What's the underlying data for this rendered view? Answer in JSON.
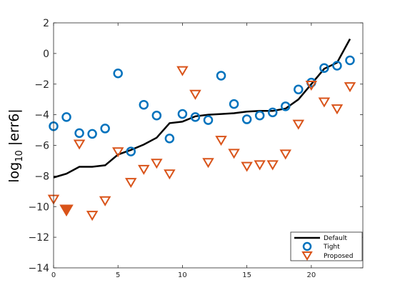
{
  "chart_data": {
    "type": "scatter",
    "xlim": [
      0,
      24
    ],
    "ylim": [
      -14,
      2
    ],
    "xticks": [
      0,
      5,
      10,
      15,
      20
    ],
    "yticks": [
      -14,
      -12,
      -10,
      -8,
      -6,
      -4,
      -2,
      0,
      2
    ],
    "ylabel": "log10 |err6|",
    "ylabel_parts": {
      "main": "log",
      "sub": "10",
      "rest": " |err6|"
    },
    "legend_position": "bottom-right",
    "series": [
      {
        "name": "Default",
        "kind": "line",
        "color": "#000000",
        "x": [
          0,
          1,
          2,
          3,
          4,
          5,
          6,
          7,
          8,
          9,
          10,
          11,
          12,
          13,
          14,
          15,
          16,
          17,
          18,
          19,
          20,
          21,
          22,
          23
        ],
        "y": [
          -8.1,
          -7.85,
          -7.4,
          -7.4,
          -7.3,
          -6.6,
          -6.3,
          -5.95,
          -5.5,
          -4.55,
          -4.45,
          -4.1,
          -4.0,
          -3.95,
          -3.9,
          -3.8,
          -3.75,
          -3.75,
          -3.6,
          -3.0,
          -2.0,
          -1.0,
          -0.6,
          0.95
        ]
      },
      {
        "name": "Tight",
        "kind": "circle",
        "color": "#0072BD",
        "x": [
          0,
          1,
          2,
          3,
          4,
          5,
          6,
          7,
          8,
          9,
          10,
          11,
          12,
          13,
          14,
          15,
          16,
          17,
          18,
          19,
          20,
          21,
          22,
          23
        ],
        "y": [
          -4.75,
          -4.15,
          -5.2,
          -5.25,
          -4.9,
          -1.3,
          -6.4,
          -3.35,
          -4.05,
          -5.55,
          -3.95,
          -4.15,
          -4.35,
          -1.45,
          -3.3,
          -4.3,
          -4.05,
          -3.85,
          -3.45,
          -2.35,
          -1.9,
          -0.95,
          -0.8,
          -0.45
        ]
      },
      {
        "name": "Proposed",
        "kind": "triangle-down",
        "color": "#D95319",
        "x": [
          0,
          1,
          2,
          3,
          4,
          5,
          6,
          7,
          8,
          9,
          10,
          11,
          12,
          13,
          14,
          15,
          16,
          17,
          18,
          19,
          20,
          21,
          22,
          23
        ],
        "y": [
          -9.5,
          -10.2,
          -5.9,
          -10.55,
          -9.6,
          -6.4,
          -8.4,
          -7.55,
          -7.15,
          -7.85,
          -1.1,
          -2.65,
          -7.1,
          -5.65,
          -6.5,
          -7.35,
          -7.25,
          -7.25,
          -6.55,
          -4.6,
          -2.05,
          -3.15,
          -3.6,
          -2.15
        ],
        "filled_index": 1
      }
    ]
  }
}
